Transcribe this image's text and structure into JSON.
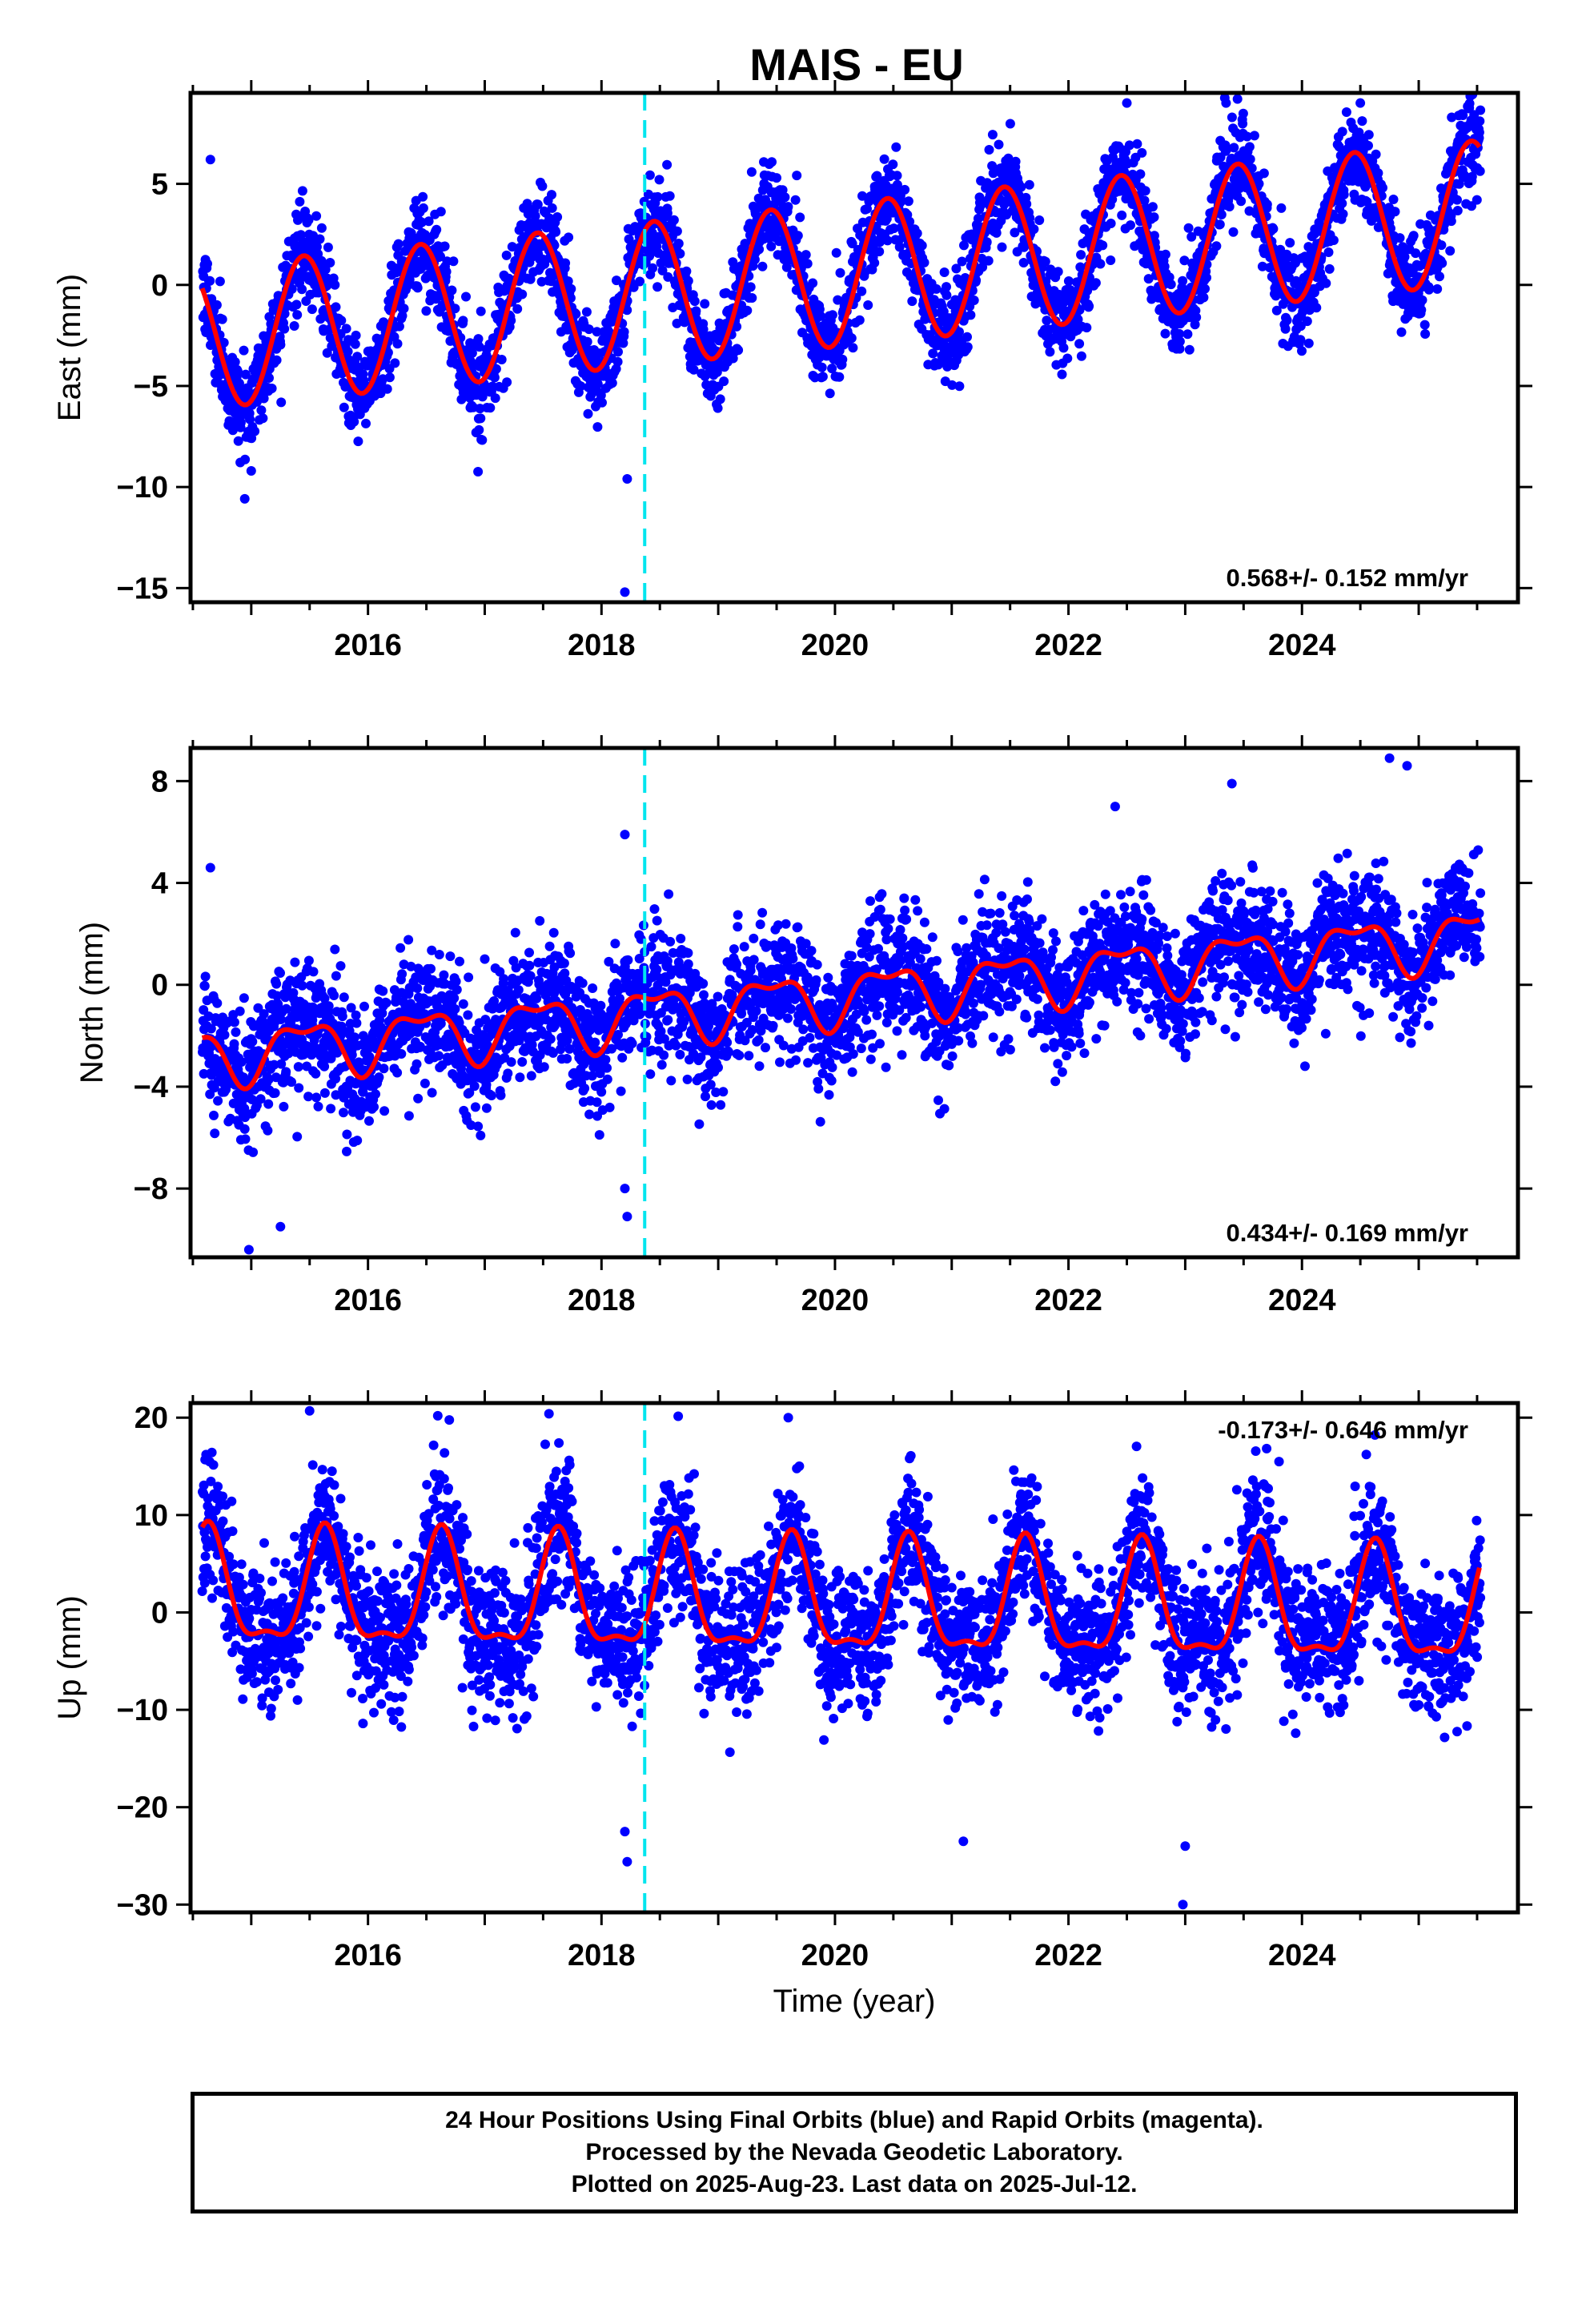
{
  "chart_data": {
    "title": "MAIS - EU",
    "type": "scatter",
    "xlabel": "Time (year)",
    "xlim": [
      2014.48,
      2025.85
    ],
    "xticks": [
      2016,
      2018,
      2020,
      2022,
      2024
    ],
    "xtick_labels": [
      "2016",
      "2018",
      "2020",
      "2022",
      "2024"
    ],
    "event_line_x": 2018.37,
    "colors": {
      "points": "#0000ff",
      "fit": "#ff0000",
      "event": "#00e5ee"
    },
    "data_range": [
      2014.58,
      2025.53
    ],
    "panels": [
      {
        "id": "east",
        "ylabel": "East (mm)",
        "ylim": [
          -15.7,
          9.5
        ],
        "yticks": [
          5,
          0,
          -5,
          -10,
          -15
        ],
        "ytick_labels": [
          "5",
          "0",
          "−5",
          "−10",
          "−15"
        ],
        "rate_text": "0.568+/- 0.152 mm/yr",
        "rate_position": "bottom-right",
        "model": {
          "start": 2014.58,
          "offset": -2.6,
          "trend": 0.568,
          "annual_amp": 3.55,
          "annual_peak": 0.45,
          "semi_amp": 0.0,
          "semi_peak": 0.0
        },
        "noise_sd": 1.15,
        "outliers": [
          [
            2014.65,
            6.2
          ],
          [
            2018.2,
            -15.2
          ],
          [
            2018.22,
            -9.6
          ],
          [
            2015.0,
            -9.2
          ],
          [
            2023.35,
            9.0
          ],
          [
            2024.5,
            9.0
          ],
          [
            2022.5,
            9.0
          ]
        ]
      },
      {
        "id": "north",
        "ylabel": "North (mm)",
        "ylim": [
          -10.7,
          9.3
        ],
        "yticks": [
          8,
          4,
          0,
          -4,
          -8
        ],
        "ytick_labels": [
          "8",
          "4",
          "0",
          "−4",
          "−8"
        ],
        "rate_text": "0.434+/- 0.169 mm/yr",
        "rate_position": "bottom-right",
        "model": {
          "start": 2014.58,
          "offset": -2.8,
          "trend": 0.434,
          "annual_amp": 1.0,
          "annual_peak": 0.45,
          "semi_amp": 0.45,
          "semi_peak": 0.2
        },
        "noise_sd": 1.2,
        "outliers": [
          [
            2014.65,
            4.6
          ],
          [
            2018.2,
            5.9
          ],
          [
            2018.2,
            -8.0
          ],
          [
            2018.22,
            -9.1
          ],
          [
            2014.98,
            -10.4
          ],
          [
            2015.25,
            -9.5
          ],
          [
            2024.75,
            8.9
          ],
          [
            2024.9,
            8.6
          ],
          [
            2023.4,
            7.9
          ],
          [
            2022.4,
            7.0
          ]
        ]
      },
      {
        "id": "up",
        "ylabel": "Up (mm)",
        "ylim": [
          -30.8,
          21.5
        ],
        "yticks": [
          20,
          10,
          0,
          -10,
          -20,
          -30
        ],
        "ytick_labels": [
          "20",
          "10",
          "0",
          "−10",
          "−20",
          "−30"
        ],
        "rate_text": "-0.173+/- 0.646 mm/yr",
        "rate_position": "top-right",
        "model": {
          "start": 2014.58,
          "offset": 1.8,
          "trend": -0.173,
          "annual_amp": 5.6,
          "annual_peak": 0.63,
          "semi_amp": 2.0,
          "semi_peak": 0.13
        },
        "noise_sd": 3.6,
        "outliers": [
          [
            2015.5,
            20.7
          ],
          [
            2017.55,
            20.4
          ],
          [
            2019.6,
            20.0
          ],
          [
            2018.2,
            -22.5
          ],
          [
            2018.22,
            -25.6
          ],
          [
            2022.98,
            -30.0
          ],
          [
            2023.0,
            -24.0
          ],
          [
            2021.1,
            -23.5
          ]
        ]
      }
    ]
  },
  "footer": {
    "line1": "24 Hour Positions Using Final Orbits (blue) and Rapid Orbits (magenta).",
    "line2": "Processed by the Nevada Geodetic Laboratory.",
    "line3": "Plotted on 2025-Aug-23. Last data on 2025-Jul-12."
  }
}
